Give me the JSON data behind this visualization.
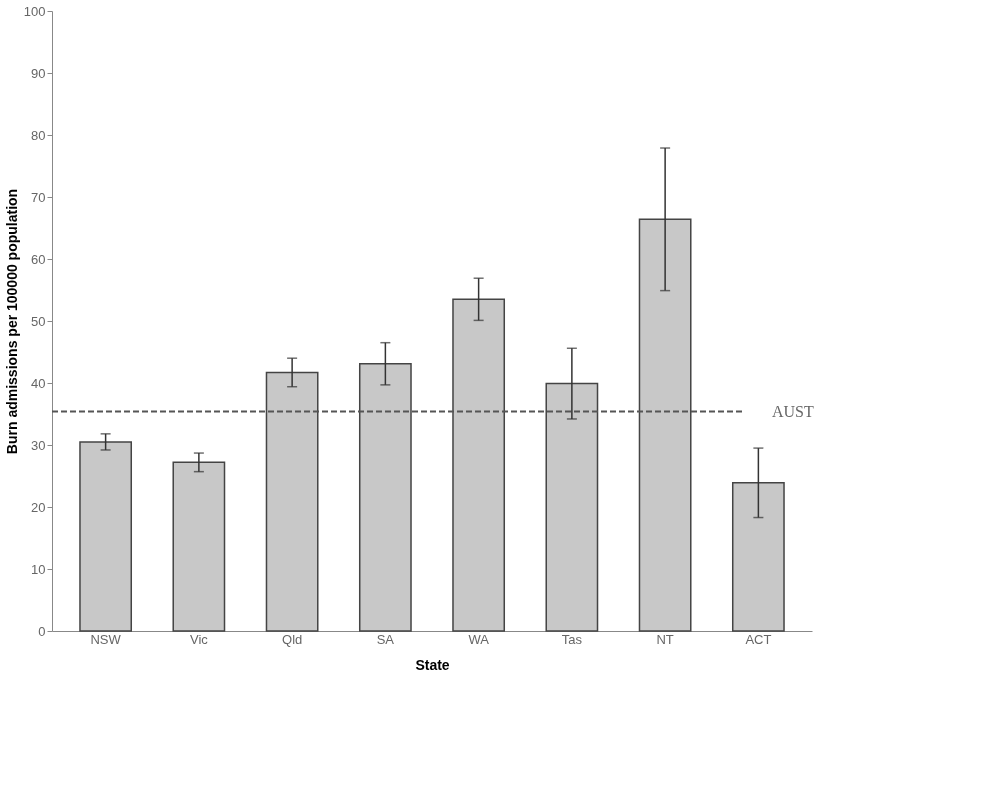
{
  "chart_data": {
    "type": "bar",
    "xlabel": "State",
    "ylabel": "Burn admissions per 100000 population",
    "categories": [
      "NSW",
      "Vic",
      "Qld",
      "SA",
      "WA",
      "Tas",
      "NT",
      "ACT"
    ],
    "values": [
      30.5,
      27.2,
      41.7,
      43.1,
      53.5,
      39.9,
      66.4,
      23.9
    ],
    "errors": [
      1.3,
      1.5,
      2.3,
      3.4,
      3.4,
      5.7,
      11.5,
      5.6
    ],
    "color": "#c8c8c8",
    "ylim": [
      0,
      100
    ],
    "yticks": [
      0,
      10,
      20,
      30,
      40,
      50,
      60,
      70,
      80,
      90,
      100
    ],
    "ref_lines": [
      {
        "axis": "y",
        "value": 35.4,
        "label": "AUST",
        "color": "#555555",
        "line_style": "dashed"
      }
    ],
    "grid": false
  }
}
